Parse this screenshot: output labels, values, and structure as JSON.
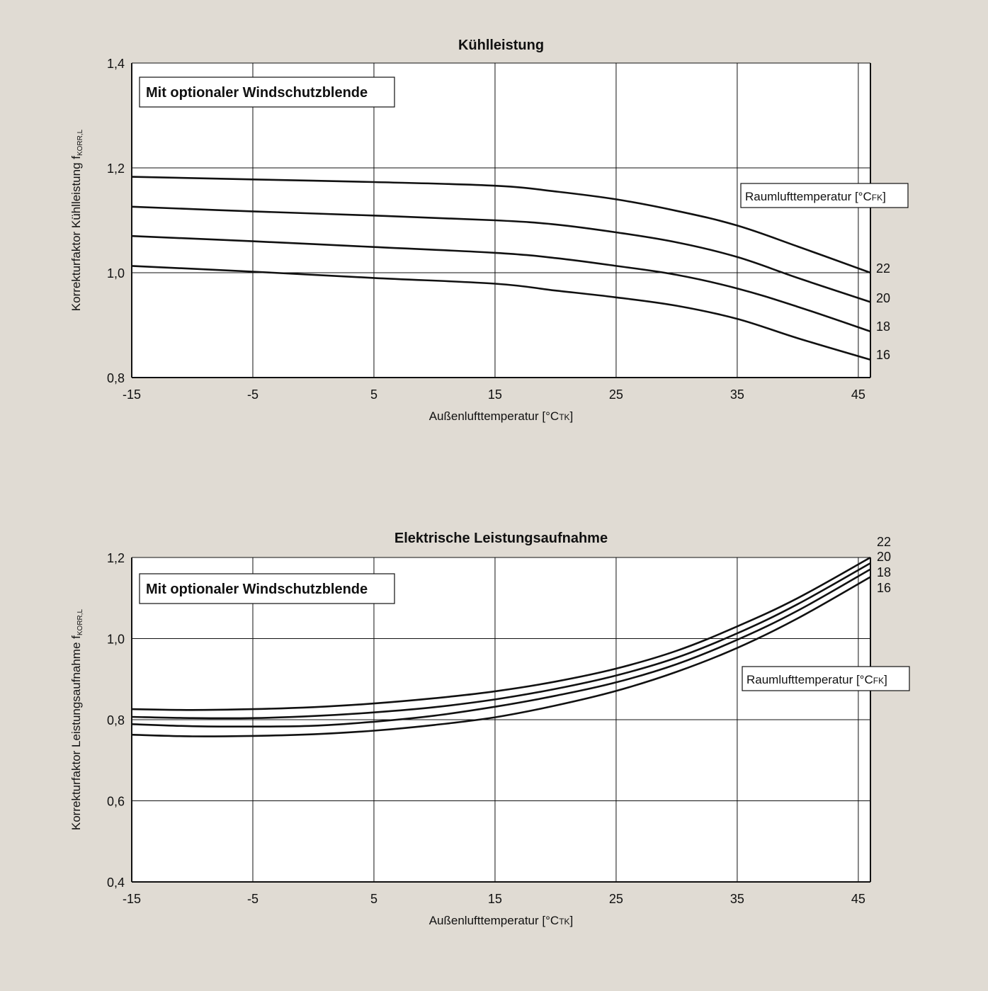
{
  "background_color": "#e0dbd3",
  "chart_data": [
    {
      "type": "line",
      "title": "Kühlleistung",
      "annotation": "Mit optionaler Windschutzblende",
      "legend_title": "Raumlufttemperatur [°C",
      "legend_title_sub": "FK",
      "legend_title_end": "]",
      "xlabel": "Außenlufttemperatur [°C",
      "xlabel_sub": "TK",
      "xlabel_end": "]",
      "ylabel": "Korrekturfaktor Kühlleistung f",
      "ylabel_sub": "KORR,L",
      "xlim": [
        -15,
        46
      ],
      "ylim": [
        0.8,
        1.4
      ],
      "xticks": [
        -15,
        -5,
        5,
        15,
        25,
        35,
        45
      ],
      "xtick_labels": [
        "-15",
        "-5",
        "5",
        "15",
        "25",
        "35",
        "45"
      ],
      "yticks": [
        0.8,
        1.0,
        1.2,
        1.4
      ],
      "ytick_labels": [
        "0,8",
        "1,0",
        "1,2",
        "1,4"
      ],
      "grid": true,
      "line_color": "#111111",
      "series": [
        {
          "name": "22",
          "x": [
            -15,
            -5,
            5,
            15,
            20,
            25,
            30,
            35,
            40,
            46
          ],
          "y": [
            1.183,
            1.178,
            1.173,
            1.166,
            1.155,
            1.14,
            1.118,
            1.09,
            1.05,
            1.0
          ]
        },
        {
          "name": "20",
          "x": [
            -15,
            -5,
            5,
            15,
            20,
            25,
            30,
            35,
            40,
            46
          ],
          "y": [
            1.126,
            1.117,
            1.109,
            1.1,
            1.092,
            1.077,
            1.058,
            1.03,
            0.99,
            0.944
          ]
        },
        {
          "name": "18",
          "x": [
            -15,
            -5,
            5,
            15,
            20,
            25,
            30,
            35,
            40,
            46
          ],
          "y": [
            1.07,
            1.06,
            1.049,
            1.038,
            1.028,
            1.013,
            0.996,
            0.97,
            0.935,
            0.888
          ]
        },
        {
          "name": "16",
          "x": [
            -15,
            -5,
            5,
            15,
            20,
            25,
            30,
            35,
            40,
            46
          ],
          "y": [
            1.013,
            1.002,
            0.99,
            0.979,
            0.966,
            0.953,
            0.937,
            0.912,
            0.875,
            0.834
          ]
        }
      ]
    },
    {
      "type": "line",
      "title": "Elektrische Leistungsaufnahme",
      "annotation": "Mit optionaler Windschutzblende",
      "legend_title": "Raumlufttemperatur [°C",
      "legend_title_sub": "FK",
      "legend_title_end": "]",
      "xlabel": "Außenlufttemperatur [°C",
      "xlabel_sub": "TK",
      "xlabel_end": "]",
      "ylabel": "Korrekturfaktor Leistungsaufnahme f",
      "ylabel_sub": "KORR,L",
      "xlim": [
        -15,
        46
      ],
      "ylim": [
        0.4,
        1.2
      ],
      "xticks": [
        -15,
        -5,
        5,
        15,
        25,
        35,
        45
      ],
      "xtick_labels": [
        "-15",
        "-5",
        "5",
        "15",
        "25",
        "35",
        "45"
      ],
      "yticks": [
        0.4,
        0.6,
        0.8,
        1.0,
        1.2
      ],
      "ytick_labels": [
        "0,4",
        "0,6",
        "0,8",
        "1,0",
        "1,2"
      ],
      "grid": true,
      "line_color": "#111111",
      "series": [
        {
          "name": "22",
          "x": [
            -15,
            -10,
            -5,
            0,
            5,
            10,
            15,
            20,
            25,
            30,
            35,
            40,
            46
          ],
          "y": [
            0.826,
            0.824,
            0.826,
            0.831,
            0.84,
            0.853,
            0.87,
            0.894,
            0.926,
            0.97,
            1.03,
            1.1,
            1.2
          ]
        },
        {
          "name": "20",
          "x": [
            -15,
            -10,
            -5,
            0,
            5,
            10,
            15,
            20,
            25,
            30,
            35,
            40,
            46
          ],
          "y": [
            0.807,
            0.804,
            0.804,
            0.809,
            0.818,
            0.831,
            0.85,
            0.876,
            0.909,
            0.953,
            1.013,
            1.085,
            1.186
          ]
        },
        {
          "name": "18",
          "x": [
            -15,
            -10,
            -5,
            0,
            5,
            10,
            15,
            20,
            25,
            30,
            35,
            40,
            46
          ],
          "y": [
            0.789,
            0.784,
            0.783,
            0.785,
            0.795,
            0.81,
            0.832,
            0.859,
            0.892,
            0.937,
            0.997,
            1.069,
            1.171
          ]
        },
        {
          "name": "16",
          "x": [
            -15,
            -10,
            -5,
            0,
            5,
            10,
            15,
            20,
            25,
            30,
            35,
            40,
            46
          ],
          "y": [
            0.763,
            0.759,
            0.76,
            0.764,
            0.773,
            0.787,
            0.806,
            0.835,
            0.871,
            0.918,
            0.977,
            1.05,
            1.152
          ]
        }
      ]
    }
  ]
}
